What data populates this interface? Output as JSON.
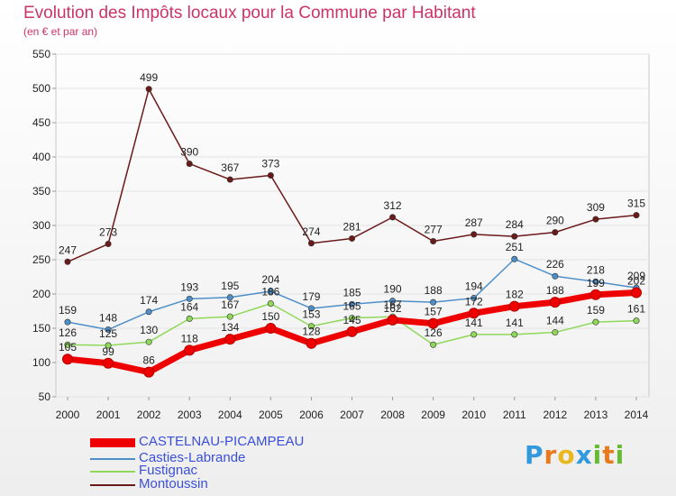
{
  "chart_data": {
    "type": "line",
    "title": "Evolution des Impôts locaux pour la Commune par Habitant",
    "subtitle": "(en € et par an)",
    "xlabel": "",
    "ylabel": "",
    "ylim": [
      50,
      550
    ],
    "yticks": [
      50,
      100,
      150,
      200,
      250,
      300,
      350,
      400,
      450,
      500,
      550
    ],
    "categories": [
      "2000",
      "2001",
      "2002",
      "2003",
      "2004",
      "2005",
      "2006",
      "2007",
      "2008",
      "2009",
      "2010",
      "2011",
      "2012",
      "2013",
      "2014"
    ],
    "series": [
      {
        "name": "Montoussin",
        "color": "#6b1a1a",
        "values": [
          247,
          273,
          499,
          390,
          367,
          373,
          274,
          281,
          312,
          277,
          287,
          284,
          290,
          309,
          315
        ]
      },
      {
        "name": "Casties-Labrande",
        "color": "#4f8fc8",
        "values": [
          159,
          148,
          174,
          193,
          195,
          204,
          179,
          185,
          190,
          188,
          194,
          251,
          226,
          218,
          209
        ]
      },
      {
        "name": "Fustignac",
        "color": "#8fd85a",
        "values": [
          126,
          125,
          130,
          164,
          167,
          186,
          153,
          165,
          167,
          126,
          141,
          141,
          144,
          159,
          161
        ]
      },
      {
        "name": "CASTELNAU-PICAMPEAU",
        "color": "#ee0000",
        "values": [
          105,
          99,
          86,
          118,
          134,
          150,
          128,
          145,
          162,
          157,
          172,
          182,
          188,
          199,
          202
        ]
      }
    ],
    "legend": [
      "CASTELNAU-PICAMPEAU",
      "Casties-Labrande",
      "Fustignac",
      "Montoussin"
    ],
    "legend_position": "bottom-left"
  },
  "brand": {
    "letters": [
      "P",
      "r",
      "o",
      "x",
      "i",
      "t",
      "i"
    ],
    "colors": [
      "#3399dd",
      "#e87a1e",
      "#e8b81e",
      "#3399dd",
      "#66bb33",
      "#e87a1e",
      "#66bb33"
    ]
  }
}
